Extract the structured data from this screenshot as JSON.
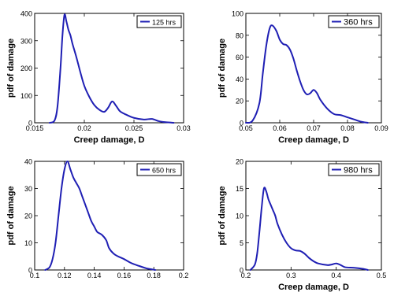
{
  "chart_data": [
    {
      "type": "line",
      "xlabel": "Creep damage, D",
      "ylabel": "pdf of damage",
      "xlim": [
        0.015,
        0.03
      ],
      "ylim": [
        0,
        400
      ],
      "xticks": [
        0.015,
        0.02,
        0.025,
        0.03
      ],
      "xticklabels": [
        "0.015",
        "0.02",
        "0.025",
        "0.03"
      ],
      "yticks": [
        0,
        100,
        200,
        300,
        400
      ],
      "yticklabels": [
        "0",
        "100",
        "200",
        "300",
        "400"
      ],
      "legend": "top-right",
      "series": [
        {
          "name": "125 hrs",
          "color": "#1f1fb4",
          "x": [
            0.0165,
            0.017,
            0.0173,
            0.0176,
            0.0178,
            0.018,
            0.0182,
            0.0184,
            0.0186,
            0.0188,
            0.0192,
            0.0196,
            0.02,
            0.0205,
            0.021,
            0.0215,
            0.022,
            0.0224,
            0.0228,
            0.0232,
            0.0236,
            0.0242,
            0.025,
            0.026,
            0.0268,
            0.0275,
            0.0282,
            0.029
          ],
          "y": [
            0,
            8,
            60,
            200,
            320,
            395,
            370,
            340,
            320,
            290,
            240,
            185,
            135,
            95,
            65,
            48,
            40,
            55,
            78,
            62,
            42,
            30,
            18,
            12,
            14,
            6,
            2,
            0
          ]
        }
      ]
    },
    {
      "type": "line",
      "xlabel": "Creep damage, D",
      "ylabel": "pdf of damage",
      "xlim": [
        0.05,
        0.09
      ],
      "ylim": [
        0,
        100
      ],
      "xticks": [
        0.05,
        0.06,
        0.07,
        0.08,
        0.09
      ],
      "xticklabels": [
        "0.05",
        "0.06",
        "0.07",
        "0.08",
        "0.09"
      ],
      "yticks": [
        0,
        20,
        40,
        60,
        80,
        100
      ],
      "yticklabels": [
        "0",
        "20",
        "40",
        "60",
        "80",
        "100"
      ],
      "legend": "top-right",
      "series": [
        {
          "name": "360 hrs",
          "color": "#1f1fb4",
          "x": [
            0.05,
            0.052,
            0.054,
            0.055,
            0.056,
            0.057,
            0.0578,
            0.059,
            0.06,
            0.061,
            0.062,
            0.063,
            0.064,
            0.065,
            0.066,
            0.067,
            0.068,
            0.069,
            0.07,
            0.071,
            0.072,
            0.074,
            0.076,
            0.078,
            0.08,
            0.082,
            0.084,
            0.086
          ],
          "y": [
            0,
            2,
            18,
            45,
            70,
            86,
            89,
            84,
            76,
            72,
            71,
            67,
            59,
            48,
            38,
            30,
            26,
            27,
            30,
            27,
            21,
            13,
            8,
            7,
            5,
            3,
            1,
            0
          ]
        }
      ]
    },
    {
      "type": "line",
      "xlabel": "",
      "ylabel": "pdf of damage",
      "xlim": [
        0.1,
        0.2
      ],
      "ylim": [
        0,
        40
      ],
      "xticks": [
        0.1,
        0.12,
        0.14,
        0.16,
        0.18,
        0.2
      ],
      "xticklabels": [
        "0.1",
        "0.12",
        "0.14",
        "0.16",
        "0.18",
        "0.2"
      ],
      "yticks": [
        0,
        10,
        20,
        30,
        40
      ],
      "yticklabels": [
        "0",
        "10",
        "20",
        "30",
        "40"
      ],
      "legend": "top-right",
      "series": [
        {
          "name": "650 hrs",
          "color": "#1f1fb4",
          "x": [
            0.107,
            0.11,
            0.112,
            0.114,
            0.116,
            0.118,
            0.12,
            0.122,
            0.124,
            0.126,
            0.128,
            0.13,
            0.132,
            0.134,
            0.136,
            0.138,
            0.14,
            0.142,
            0.145,
            0.148,
            0.15,
            0.153,
            0.156,
            0.16,
            0.165,
            0.17,
            0.175,
            0.178,
            0.181
          ],
          "y": [
            0,
            1,
            4,
            10,
            20,
            30,
            37,
            40,
            37,
            34,
            32,
            30,
            27,
            24,
            21,
            18,
            16,
            14,
            13,
            11,
            8,
            6,
            5,
            4,
            2.5,
            1.5,
            0.6,
            0.3,
            0
          ]
        }
      ]
    },
    {
      "type": "line",
      "xlabel": "Creep damage, D",
      "ylabel": "pdf of damage",
      "xlim": [
        0.2,
        0.5
      ],
      "ylim": [
        0,
        20
      ],
      "xticks": [
        0.2,
        0.3,
        0.4,
        0.5
      ],
      "xticklabels": [
        "0.2",
        "0.3",
        "0.4",
        "0.5"
      ],
      "yticks": [
        0,
        5,
        10,
        15,
        20
      ],
      "yticklabels": [
        "0",
        "5",
        "10",
        "15",
        "20"
      ],
      "legend": "top-right",
      "series": [
        {
          "name": "980 hrs",
          "color": "#1f1fb4",
          "x": [
            0.21,
            0.22,
            0.225,
            0.23,
            0.235,
            0.24,
            0.245,
            0.25,
            0.255,
            0.26,
            0.265,
            0.27,
            0.28,
            0.29,
            0.3,
            0.31,
            0.32,
            0.33,
            0.34,
            0.35,
            0.36,
            0.38,
            0.39,
            0.4,
            0.41,
            0.42,
            0.44,
            0.46,
            0.47
          ],
          "y": [
            0,
            1,
            3,
            7,
            11.5,
            15,
            14.5,
            13,
            12,
            11,
            10,
            8.5,
            6.5,
            5,
            4,
            3.6,
            3.5,
            3.0,
            2.2,
            1.6,
            1.2,
            0.9,
            1.0,
            1.2,
            0.9,
            0.5,
            0.4,
            0.2,
            0
          ]
        }
      ]
    }
  ]
}
